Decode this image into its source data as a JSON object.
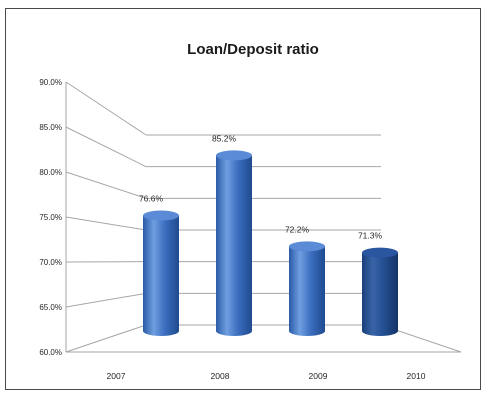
{
  "chart_data": {
    "type": "bar",
    "title": "Loan/Deposit ratio",
    "categories": [
      "2007",
      "2008",
      "2009",
      "2010"
    ],
    "values": [
      76.6,
      85.2,
      72.2,
      71.3
    ],
    "data_labels": [
      "76.6%",
      "85.2%",
      "72.2%",
      "71.3%"
    ],
    "y_ticks": [
      "60.0%",
      "65.0%",
      "70.0%",
      "75.0%",
      "80.0%",
      "85.0%",
      "90.0%"
    ],
    "ylim": [
      60,
      90
    ],
    "xlabel": "",
    "ylabel": "",
    "grid": true,
    "style": "3d-cylinder",
    "colors": {
      "bar_light": "#6f9fe0",
      "bar_mid": "#3c6fc0",
      "bar_dark": "#1f4a8e",
      "bar_last_dark": "#173a6f",
      "grid": "#a6a6a6"
    }
  }
}
